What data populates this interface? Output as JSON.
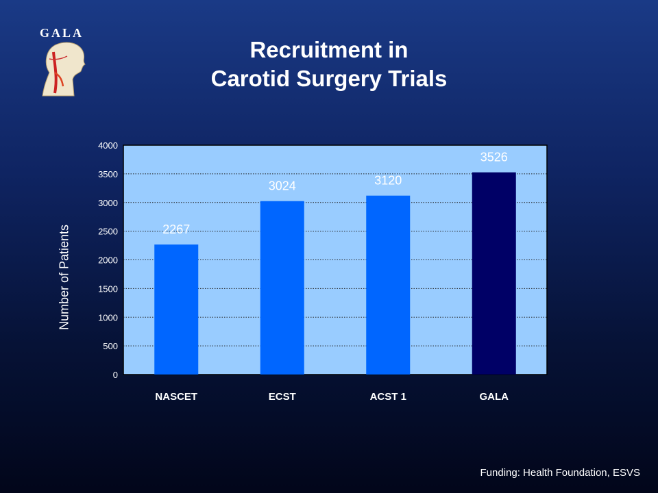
{
  "logo": {
    "text": "GALA",
    "icon": "head-neck-anatomy-icon"
  },
  "title": {
    "line1": "Recruitment in",
    "line2": "Carotid Surgery Trials"
  },
  "footer": "Funding: Health Foundation, ESVS",
  "chart_data": {
    "type": "bar",
    "categories": [
      "NASCET",
      "ECST",
      "ACST 1",
      "GALA"
    ],
    "values": [
      2267,
      3024,
      3120,
      3526
    ],
    "data_labels": [
      "2267",
      "3024",
      "3120",
      "3526"
    ],
    "ylabel": "Number of Patients",
    "xlabel": "",
    "ylim": [
      0,
      4000
    ],
    "yticks": [
      0,
      500,
      1000,
      1500,
      2000,
      2500,
      3000,
      3500,
      4000
    ],
    "grid": true,
    "colors": {
      "plot_bg": "#99ccff",
      "bar": "#0066ff",
      "highlight_bar": "#000066",
      "highlight_category": "GALA"
    }
  }
}
